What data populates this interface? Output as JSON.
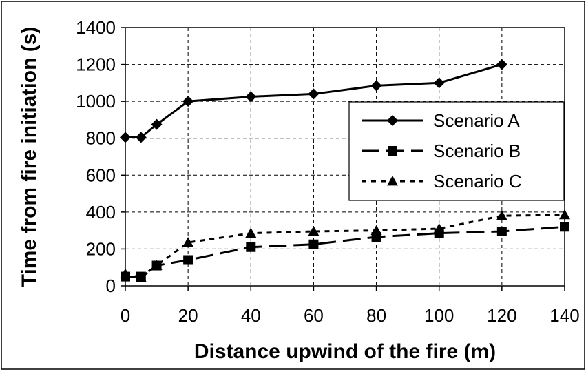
{
  "chart_data": {
    "type": "line",
    "xlabel": "Distance upwind of the fire (m)",
    "ylabel": "Time from fire initiation (s)",
    "xlim": [
      0,
      140
    ],
    "ylim": [
      0,
      1400
    ],
    "xticks": [
      0,
      20,
      40,
      60,
      80,
      100,
      120,
      140
    ],
    "yticks": [
      0,
      200,
      400,
      600,
      800,
      1000,
      1200,
      1400
    ],
    "grid": true,
    "legend_position": "right",
    "series": [
      {
        "name": "Scenario A",
        "line_style": "solid",
        "marker": "diamond",
        "color": "#000000",
        "x": [
          0,
          5,
          10,
          20,
          40,
          60,
          80,
          100,
          120
        ],
        "y": [
          805,
          805,
          875,
          1000,
          1025,
          1040,
          1085,
          1100,
          1200
        ]
      },
      {
        "name": "Scenario B",
        "line_style": "long-dash",
        "marker": "square",
        "color": "#000000",
        "x": [
          0,
          5,
          10,
          20,
          40,
          60,
          80,
          100,
          120,
          140
        ],
        "y": [
          50,
          50,
          110,
          140,
          210,
          225,
          265,
          285,
          295,
          320
        ]
      },
      {
        "name": "Scenario C",
        "line_style": "short-dash",
        "marker": "triangle",
        "color": "#000000",
        "x": [
          0,
          5,
          10,
          20,
          40,
          60,
          80,
          100,
          120,
          140
        ],
        "y": [
          65,
          45,
          110,
          235,
          285,
          295,
          300,
          310,
          380,
          385
        ]
      }
    ]
  }
}
